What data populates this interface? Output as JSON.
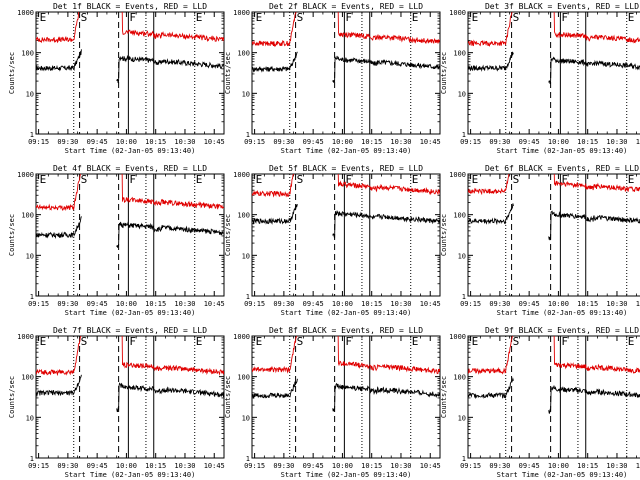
{
  "shared": {
    "xticks": [
      "09:15",
      "09:30",
      "09:45",
      "10:00",
      "10:15",
      "10:30",
      "10:45"
    ],
    "yticks": [
      "1",
      "10",
      "100",
      "1000"
    ],
    "ylabel": "Counts/sec",
    "xlabel": "Start Time (02-Jan-05 09:13:40)",
    "colors": {
      "events": "#000000",
      "lld": "#e00000",
      "axes": "#000000"
    },
    "region_labels": [
      {
        "text": "E",
        "at": "09:15"
      },
      {
        "text": "S",
        "at": "09:36"
      },
      {
        "text": "F",
        "at": "10:01"
      },
      {
        "text": "E",
        "at": "10:35"
      }
    ],
    "vlines": [
      {
        "at": "09:33",
        "style": "dotted"
      },
      {
        "at": "09:36",
        "style": "dashed"
      },
      {
        "at": "09:56",
        "style": "dashed"
      },
      {
        "at": "10:01",
        "style": "solid"
      },
      {
        "at": "10:10",
        "style": "dotted"
      },
      {
        "at": "10:14",
        "style": "solid"
      },
      {
        "at": "10:35",
        "style": "dotted"
      }
    ]
  },
  "chart_data": [
    {
      "type": "line",
      "title": "Det 1f BLACK = Events, RED = LLD",
      "x_range": [
        "09:13:40",
        "10:50:00"
      ],
      "ylim": [
        1,
        1000
      ],
      "yscale": "log",
      "series": [
        {
          "name": "Events",
          "color": "#000000",
          "baseline": 42,
          "post": 58
        },
        {
          "name": "LLD",
          "color": "#e00000",
          "baseline": 210,
          "post": 260
        }
      ]
    },
    {
      "type": "line",
      "title": "Det 2f BLACK = Events, RED = LLD",
      "x_range": [
        "09:13:40",
        "10:50:00"
      ],
      "ylim": [
        1,
        1000
      ],
      "yscale": "log",
      "series": [
        {
          "name": "Events",
          "color": "#000000",
          "baseline": 40,
          "post": 55
        },
        {
          "name": "LLD",
          "color": "#e00000",
          "baseline": 170,
          "post": 230
        }
      ]
    },
    {
      "type": "line",
      "title": "Det 3f BLACK = Events, RED = LLD",
      "x_range": [
        "09:13:40",
        "10:50:00"
      ],
      "ylim": [
        1,
        1000
      ],
      "yscale": "log",
      "series": [
        {
          "name": "Events",
          "color": "#000000",
          "baseline": 42,
          "post": 52
        },
        {
          "name": "LLD",
          "color": "#e00000",
          "baseline": 170,
          "post": 230
        }
      ]
    },
    {
      "type": "line",
      "title": "Det 4f BLACK = Events, RED = LLD",
      "x_range": [
        "09:13:40",
        "10:50:00"
      ],
      "ylim": [
        1,
        1000
      ],
      "yscale": "log",
      "series": [
        {
          "name": "Events",
          "color": "#000000",
          "baseline": 32,
          "post": 45
        },
        {
          "name": "LLD",
          "color": "#e00000",
          "baseline": 150,
          "post": 190
        }
      ]
    },
    {
      "type": "line",
      "title": "Det 5f BLACK = Events, RED = LLD",
      "x_range": [
        "09:13:40",
        "10:50:00"
      ],
      "ylim": [
        1,
        1000
      ],
      "yscale": "log",
      "series": [
        {
          "name": "Events",
          "color": "#000000",
          "baseline": 70,
          "post": 85
        },
        {
          "name": "LLD",
          "color": "#e00000",
          "baseline": 330,
          "post": 450
        }
      ]
    },
    {
      "type": "line",
      "title": "Det 6f BLACK = Events, RED = LLD",
      "x_range": [
        "09:13:40",
        "10:50:00"
      ],
      "ylim": [
        1,
        1000
      ],
      "yscale": "log",
      "series": [
        {
          "name": "Events",
          "color": "#000000",
          "baseline": 70,
          "post": 80
        },
        {
          "name": "LLD",
          "color": "#e00000",
          "baseline": 380,
          "post": 470
        }
      ]
    },
    {
      "type": "line",
      "title": "Det 7f BLACK = Events, RED = LLD",
      "x_range": [
        "09:13:40",
        "10:50:00"
      ],
      "ylim": [
        1,
        1000
      ],
      "yscale": "log",
      "series": [
        {
          "name": "Events",
          "color": "#000000",
          "baseline": 40,
          "post": 45
        },
        {
          "name": "LLD",
          "color": "#e00000",
          "baseline": 130,
          "post": 160
        }
      ]
    },
    {
      "type": "line",
      "title": "Det 8f BLACK = Events, RED = LLD",
      "x_range": [
        "09:13:40",
        "10:50:00"
      ],
      "ylim": [
        1,
        1000
      ],
      "yscale": "log",
      "series": [
        {
          "name": "Events",
          "color": "#000000",
          "baseline": 35,
          "post": 45
        },
        {
          "name": "LLD",
          "color": "#e00000",
          "baseline": 150,
          "post": 170
        }
      ]
    },
    {
      "type": "line",
      "title": "Det 9f BLACK = Events, RED = LLD",
      "x_range": [
        "09:13:40",
        "10:50:00"
      ],
      "ylim": [
        1,
        1000
      ],
      "yscale": "log",
      "series": [
        {
          "name": "Events",
          "color": "#000000",
          "baseline": 35,
          "post": 40
        },
        {
          "name": "LLD",
          "color": "#e00000",
          "baseline": 140,
          "post": 160
        }
      ]
    }
  ]
}
